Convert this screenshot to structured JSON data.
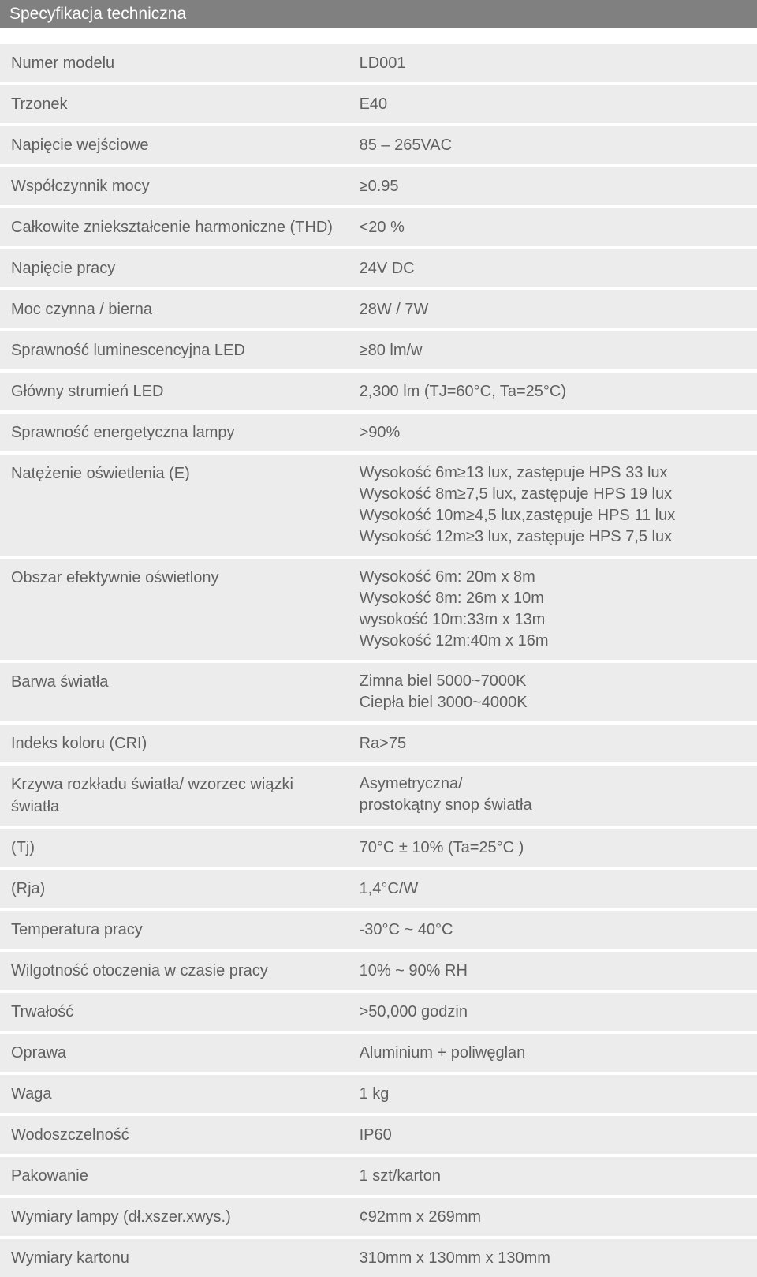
{
  "header": "Specyfikacja techniczna",
  "rows": [
    {
      "label": "Numer modelu",
      "value": "LD001"
    },
    {
      "label": "Trzonek",
      "value": "E40"
    },
    {
      "label": "Napięcie wejściowe",
      "value": "85 – 265VAC"
    },
    {
      "label": "Współczynnik mocy",
      "value": "≥0.95"
    },
    {
      "label": "Całkowite zniekształcenie harmoniczne (THD)",
      "value": "<20 %"
    },
    {
      "label": "Napięcie pracy",
      "value": "24V DC"
    },
    {
      "label": "Moc czynna / bierna",
      "value": "28W / 7W"
    },
    {
      "label": "Sprawność luminescencyjna LED",
      "value": "≥80 lm/w"
    },
    {
      "label": "Główny strumień LED",
      "value": "2,300 lm (TJ=60°C, Ta=25°C)"
    },
    {
      "label": "Sprawność energetyczna lampy",
      "value": ">90%"
    },
    {
      "label": "Natężenie oświetlenia (E)",
      "value": "Wysokość  6m≥13 lux, zastępuje HPS 33 lux\nWysokość  8m≥7,5 lux, zastępuje HPS 19 lux\nWysokość 10m≥4,5 lux,zastępuje HPS 11 lux\nWysokość 12m≥3 lux, zastępuje HPS 7,5 lux"
    },
    {
      "label": "Obszar efektywnie oświetlony",
      "value": "Wysokość 6m: 20m x 8m\nWysokość 8m: 26m x 10m\nwysokość 10m:33m x 13m\nWysokość 12m:40m x 16m"
    },
    {
      "label": "Barwa światła",
      "value": "Zimna biel 5000~7000K\nCiepła biel 3000~4000K"
    },
    {
      "label": "Indeks koloru (CRI)",
      "value": "Ra>75"
    },
    {
      "label": "Krzywa rozkładu światła/ wzorzec wiązki światła",
      "value": "Asymetryczna/\nprostokątny snop światła"
    },
    {
      "label": "(Tj)",
      "value": "70°C ± 10% (Ta=25°C )"
    },
    {
      "label": "(Rja)",
      "value": "1,4°C/W"
    },
    {
      "label": "Temperatura pracy",
      "value": "-30°C ~ 40°C"
    },
    {
      "label": "Wilgotność otoczenia w czasie pracy",
      "value": "10% ~ 90% RH"
    },
    {
      "label": "Trwałość",
      "value": ">50,000 godzin"
    },
    {
      "label": "Oprawa",
      "value": "Aluminium + poliwęglan"
    },
    {
      "label": "Waga",
      "value": "1 kg"
    },
    {
      "label": "Wodoszczelność",
      "value": "IP60"
    },
    {
      "label": "Pakowanie",
      "value": "1 szt/karton"
    },
    {
      "label": "Wymiary lampy (dł.xszer.xwys.)",
      "value": "¢92mm x 269mm"
    },
    {
      "label": "Wymiary kartonu",
      "value": "310mm x 130mm x 130mm"
    }
  ],
  "colors": {
    "header_bg": "#808080",
    "header_text": "#ffffff",
    "row_bg": "#ececec",
    "text": "#606060"
  }
}
